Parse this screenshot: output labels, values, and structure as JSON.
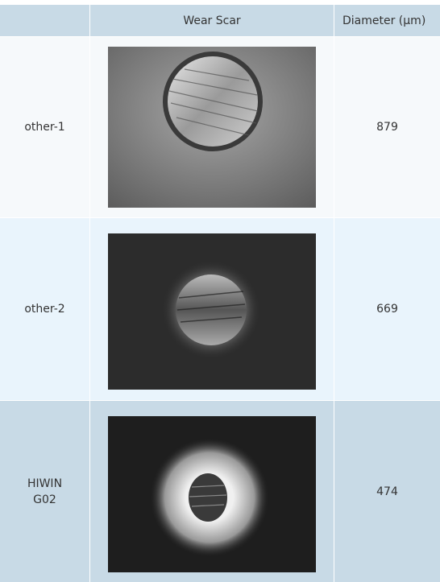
{
  "table": {
    "header": {
      "wear_scar": "Wear Scar",
      "diameter": "Diameter (μm)"
    },
    "rows": [
      {
        "label": "other-1",
        "diameter": 879
      },
      {
        "label": "other-2",
        "diameter": 669
      },
      {
        "label": "HIWIN G02",
        "diameter": 474
      }
    ]
  }
}
